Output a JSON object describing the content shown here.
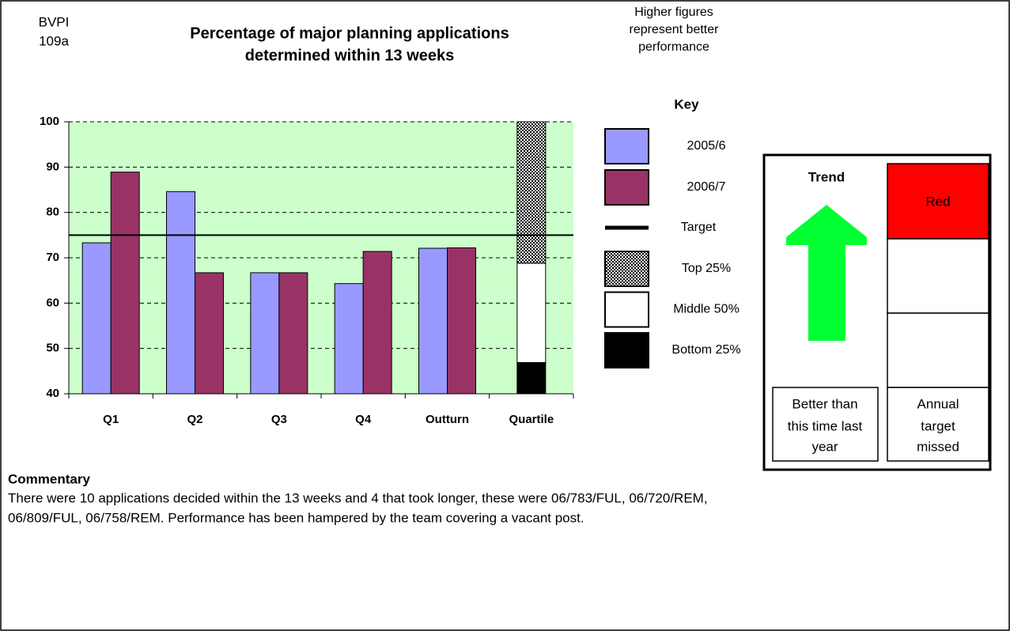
{
  "header": {
    "code": [
      "BVPI",
      "109a"
    ],
    "note": [
      "Higher figures",
      "represent better",
      "performance"
    ]
  },
  "chart_data": {
    "type": "bar",
    "title": [
      "Percentage of major planning applications",
      "determined within 13 weeks"
    ],
    "categories": [
      "Q1",
      "Q2",
      "Q3",
      "Q4",
      "Outturn",
      "Quartile"
    ],
    "series": [
      {
        "name": "2005/6",
        "color": "#9999ff",
        "values": [
          73.3,
          84.6,
          66.7,
          64.3,
          72.1,
          null
        ]
      },
      {
        "name": "2006/7",
        "color": "#993366",
        "values": [
          88.9,
          66.7,
          66.7,
          71.4,
          72.2,
          null
        ]
      }
    ],
    "target": 75,
    "target_label": "Target",
    "quartiles": {
      "lower": 46.9,
      "upper": 68.8
    },
    "quartile_labels": [
      "Top 25%",
      "Middle 50%",
      "Bottom 25%"
    ],
    "key_title": "Key",
    "ylim": [
      40,
      100
    ],
    "yticks": [
      40,
      50,
      60,
      70,
      80,
      90,
      100
    ],
    "grid": true,
    "background": "#ccffcc"
  },
  "trend": {
    "title": "Trend",
    "caption": [
      "Better than",
      "this time last",
      "year"
    ],
    "status": "Red",
    "status_caption": [
      "Annual",
      "target",
      "missed"
    ]
  },
  "commentary": {
    "title": "Commentary",
    "lines": [
      "There were 10 applications decided within the 13 weeks and 4 that took longer, these were 06/783/FUL, 06/720/REM,",
      "06/809/FUL, 06/758/REM. Performance has been hampered by the team covering a vacant post."
    ]
  }
}
